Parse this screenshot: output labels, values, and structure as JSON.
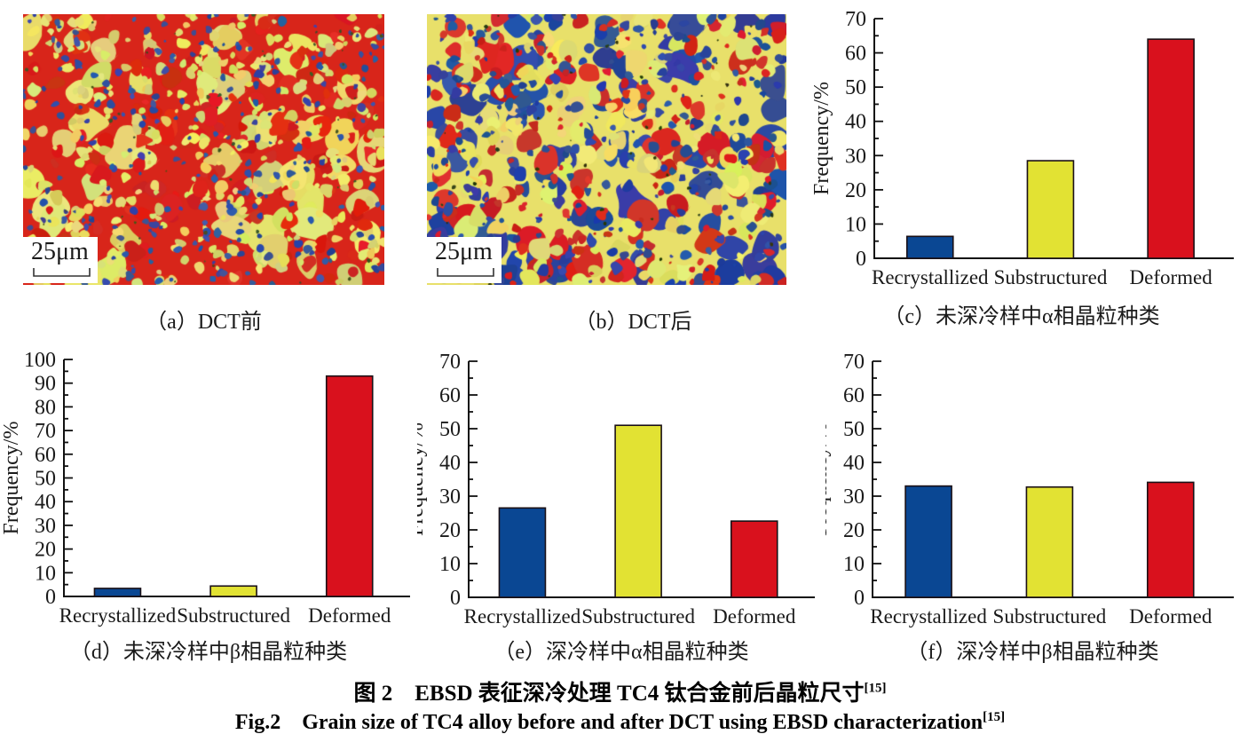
{
  "figure": {
    "caption_zh": "图 2　EBSD 表征深冷处理 TC4 钛合金前后晶粒尺寸",
    "caption_en": "Fig.2　Grain size of TC4 alloy before and after DCT using EBSD characterization",
    "ref": "[15]"
  },
  "micrographs": [
    {
      "label": "（a）DCT前",
      "scale_label": "25μm",
      "palette": {
        "red": "#d8251a",
        "yellow": "#e2da6c",
        "blue": "#33509f",
        "dark": "#44511f"
      }
    },
    {
      "label": "（b）DCT后",
      "scale_label": "25μm",
      "palette": {
        "red": "#d32a22",
        "yellow": "#e8e06a",
        "blue": "#2b4a9e",
        "dark": "#2c3a10"
      }
    }
  ],
  "chart_data": [
    {
      "id": "c",
      "type": "bar",
      "caption": "（c）未深冷样中α相晶粒种类",
      "categories": [
        "Recrystallized",
        "Substructured",
        "Deformed"
      ],
      "values": [
        6.4,
        28.5,
        64
      ],
      "ylabel": "Frequency/%",
      "ylim": [
        0,
        70
      ],
      "ytick_step": 10,
      "minor_step": 5,
      "colors": [
        "#0a4793",
        "#e2e233",
        "#d9111d"
      ]
    },
    {
      "id": "d",
      "type": "bar",
      "caption": "（d）未深冷样中β相晶粒种类",
      "categories": [
        "Recrystallized",
        "Substructured",
        "Deformed"
      ],
      "values": [
        3.4,
        4.4,
        93
      ],
      "ylabel": "Frequency/%",
      "ylim": [
        0,
        100
      ],
      "ytick_step": 10,
      "minor_step": 5,
      "colors": [
        "#0a4793",
        "#e2e233",
        "#d9111d"
      ]
    },
    {
      "id": "e",
      "type": "bar",
      "caption": "（e）深冷样中α相晶粒种类",
      "categories": [
        "Recrystallized",
        "Substructured",
        "Deformed"
      ],
      "values": [
        26.5,
        51,
        22.6
      ],
      "ylabel": "Frequency/%",
      "ylim": [
        0,
        70
      ],
      "ytick_step": 10,
      "minor_step": 5,
      "colors": [
        "#0a4793",
        "#e2e233",
        "#d9111d"
      ]
    },
    {
      "id": "f",
      "type": "bar",
      "caption": "（f）深冷样中β相晶粒种类",
      "categories": [
        "Recrystallized",
        "Substructured",
        "Deformed"
      ],
      "values": [
        33,
        32.7,
        34.1
      ],
      "ylabel": "Frequency/%",
      "ylim": [
        0,
        70
      ],
      "ytick_step": 10,
      "minor_step": 5,
      "colors": [
        "#0a4793",
        "#e2e233",
        "#d9111d"
      ]
    }
  ]
}
